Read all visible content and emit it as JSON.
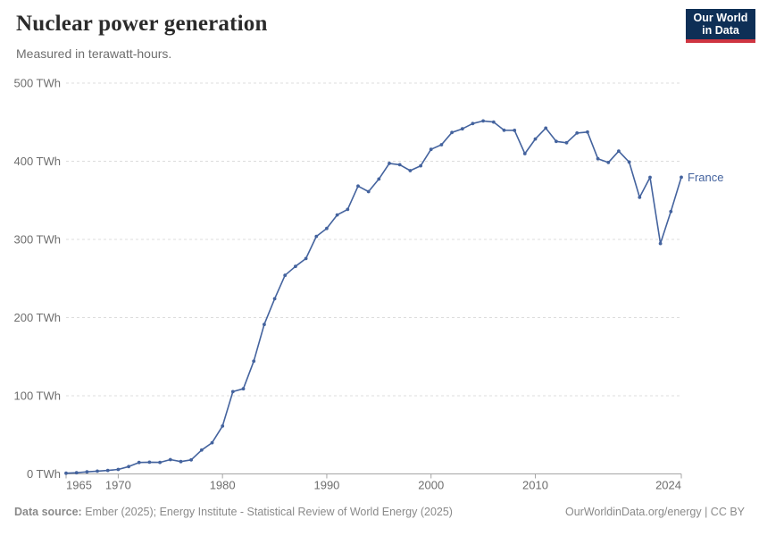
{
  "header": {
    "title": "Nuclear power generation",
    "subtitle": "Measured in terawatt-hours.",
    "logo": {
      "line1": "Our World",
      "line2": "in Data"
    }
  },
  "footer": {
    "source_label": "Data source:",
    "source_text": " Ember (2025); Energy Institute - Statistical Review of World Energy (2025)",
    "right_text": "OurWorldinData.org/energy | CC BY"
  },
  "colors": {
    "line": "#44639e",
    "series_label": "#44639e",
    "grid": "#dcdcdc",
    "axis": "#a5a5a5",
    "tick_text": "#6e6e6e",
    "logo_bg": "#0e2f56",
    "logo_stripe": "#cf3541"
  },
  "chart_data": {
    "type": "line",
    "title": "Nuclear power generation",
    "subtitle": "Measured in terawatt-hours.",
    "xlabel": "",
    "ylabel": "TWh",
    "xlim": [
      1965,
      2024
    ],
    "ylim": [
      0,
      500
    ],
    "x_ticks": [
      1965,
      1970,
      1980,
      1990,
      2000,
      2010,
      2024
    ],
    "y_ticks": [
      0,
      100,
      200,
      300,
      400,
      500
    ],
    "y_tick_suffix": " TWh",
    "grid": "horizontal-dashed",
    "legend_position": "end-of-line-label",
    "series": [
      {
        "name": "France",
        "x": [
          1965,
          1966,
          1967,
          1968,
          1969,
          1970,
          1971,
          1972,
          1973,
          1974,
          1975,
          1976,
          1977,
          1978,
          1979,
          1980,
          1981,
          1982,
          1983,
          1984,
          1985,
          1986,
          1987,
          1988,
          1989,
          1990,
          1991,
          1992,
          1993,
          1994,
          1995,
          1996,
          1997,
          1998,
          1999,
          2000,
          2001,
          2002,
          2003,
          2004,
          2005,
          2006,
          2007,
          2008,
          2009,
          2010,
          2011,
          2012,
          2013,
          2014,
          2015,
          2016,
          2017,
          2018,
          2019,
          2020,
          2021,
          2022,
          2023,
          2024
        ],
        "values": [
          0.9,
          1.5,
          2.6,
          3.5,
          4.5,
          5.7,
          9.4,
          14.6,
          15.0,
          14.7,
          18.3,
          15.8,
          17.9,
          30.5,
          39.9,
          61.3,
          105.2,
          108.9,
          144.2,
          191.2,
          224.1,
          254.1,
          265.5,
          275.5,
          303.9,
          314.1,
          331.3,
          338.4,
          368.2,
          361.1,
          377.2,
          397.3,
          395.5,
          388.0,
          394.2,
          415.2,
          421.1,
          436.8,
          441.5,
          448.2,
          451.5,
          450.2,
          439.7,
          439.5,
          409.7,
          428.5,
          442.4,
          425.4,
          423.7,
          436.1,
          437.4,
          403.2,
          398.4,
          412.9,
          399.0,
          353.8,
          379.4,
          294.7,
          335.7,
          379.5
        ]
      }
    ]
  }
}
